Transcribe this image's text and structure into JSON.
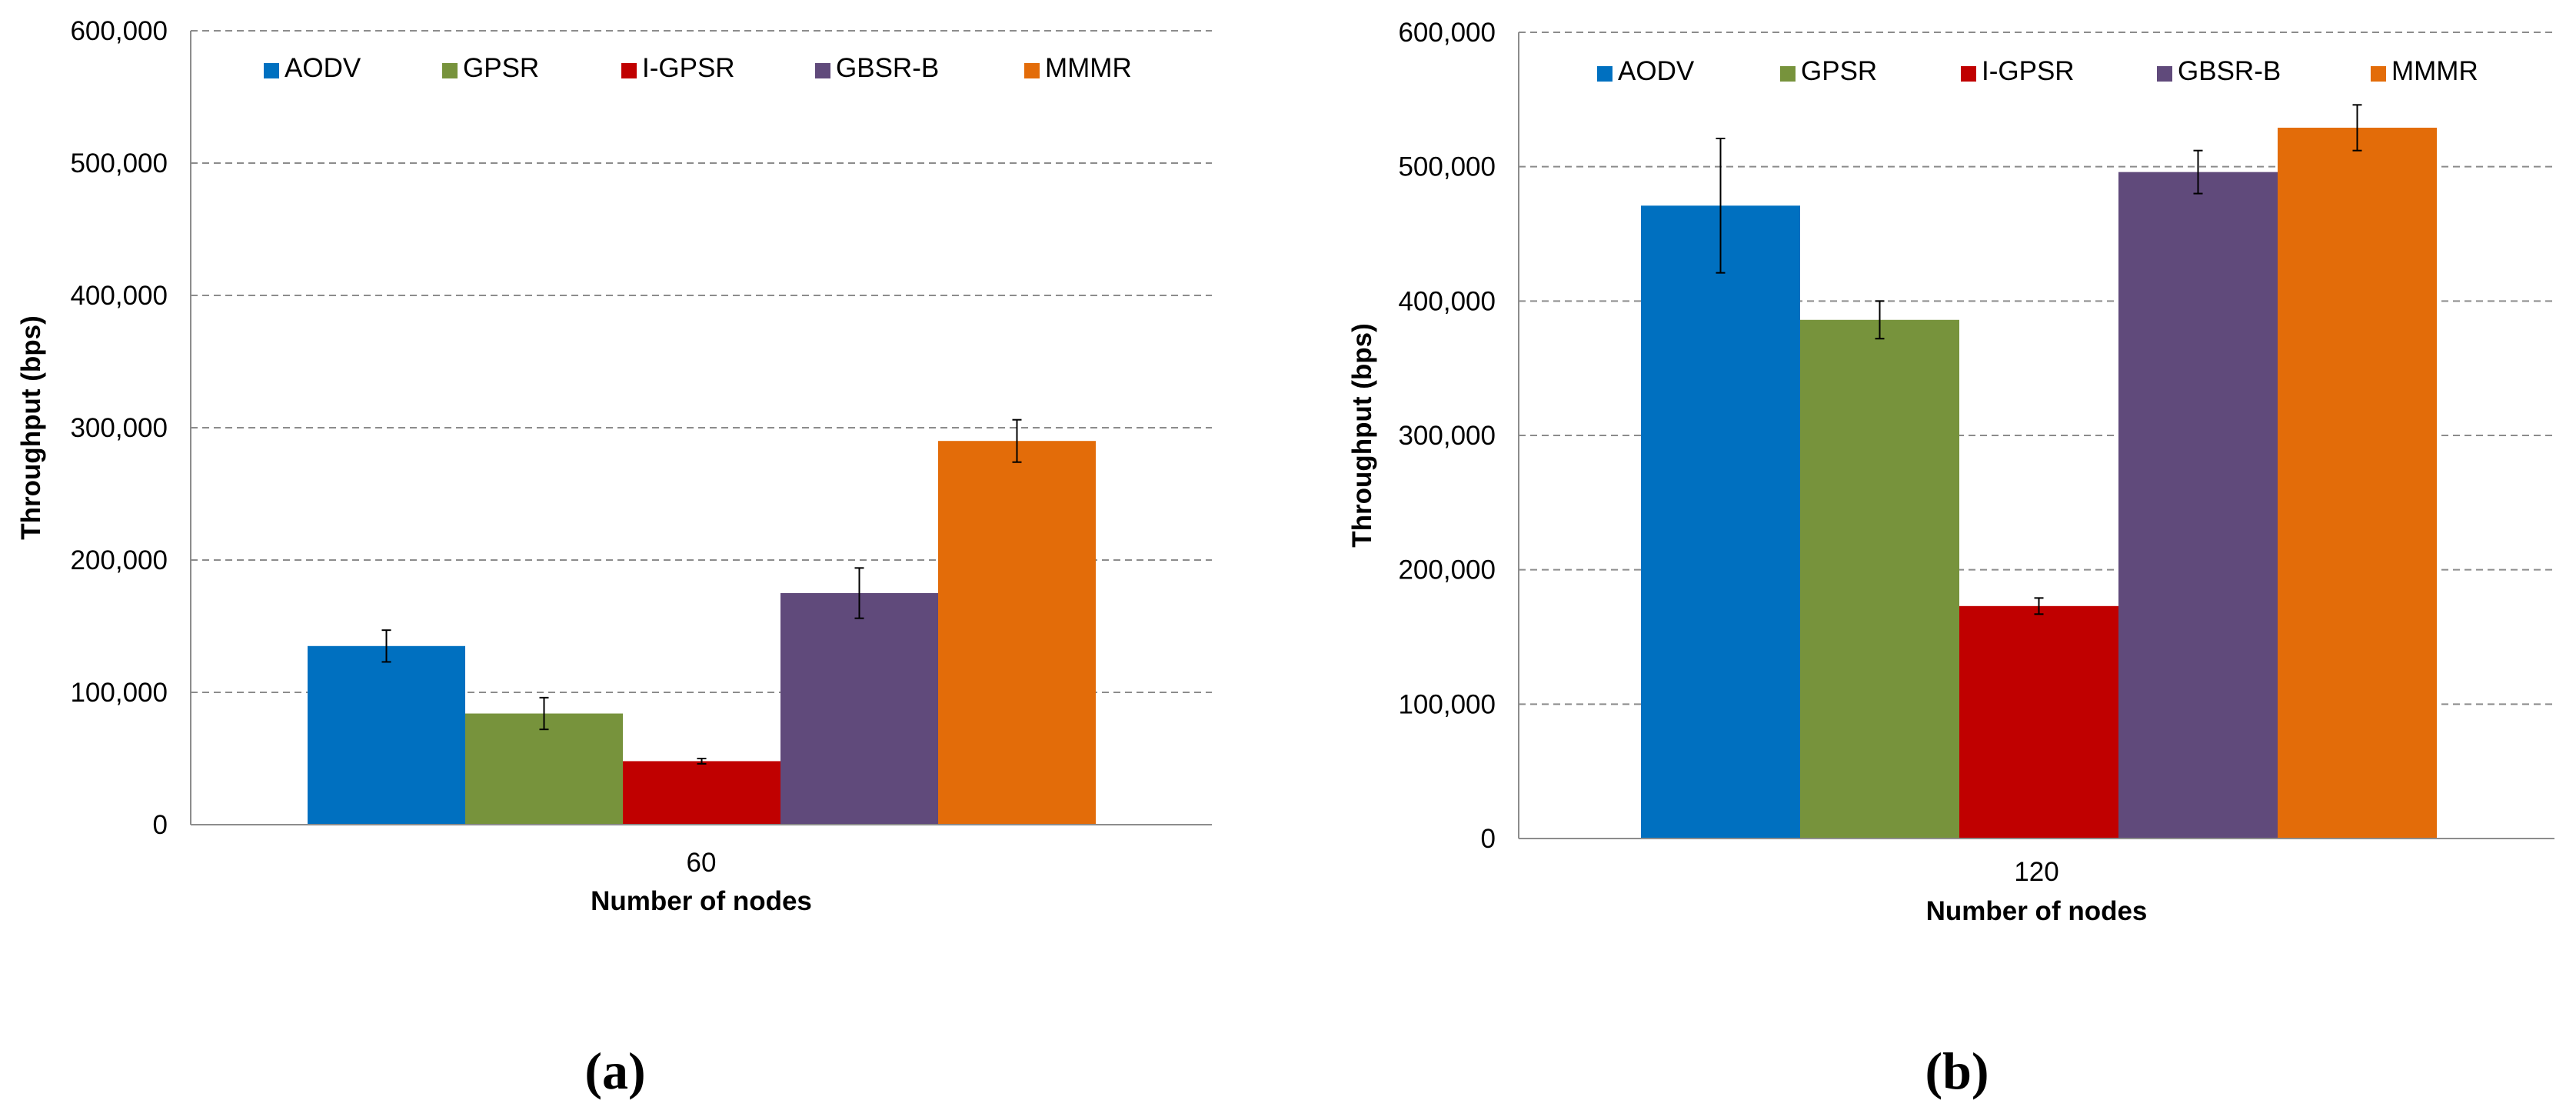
{
  "colors": {
    "AODV": "#0070C0",
    "GPSR": "#77933C",
    "I-GPSR": "#C00000",
    "GBSR-B": "#604A7B",
    "MMMR": "#E36C09"
  },
  "chart_data": [
    {
      "type": "bar",
      "panel_label": "(a)",
      "categories": [
        "60"
      ],
      "series": [
        {
          "name": "AODV",
          "values": [
            135000
          ],
          "error": [
            12000
          ]
        },
        {
          "name": "GPSR",
          "values": [
            84000
          ],
          "error": [
            12000
          ]
        },
        {
          "name": "I-GPSR",
          "values": [
            48000
          ],
          "error": [
            2000
          ]
        },
        {
          "name": "GBSR-B",
          "values": [
            175000
          ],
          "error": [
            19000
          ]
        },
        {
          "name": "MMMR",
          "values": [
            290000
          ],
          "error": [
            16000
          ]
        }
      ],
      "title": "",
      "xlabel": "Number of nodes",
      "ylabel": "Throughput (bps)",
      "ylim": [
        0,
        600000
      ],
      "yticks": [
        "0",
        "100,000",
        "200,000",
        "300,000",
        "400,000",
        "500,000",
        "600,000"
      ],
      "legend": [
        "AODV",
        "GPSR",
        "I-GPSR",
        "GBSR-B",
        "MMMR"
      ],
      "legend_position": "top",
      "grid": "horizontal dashed"
    },
    {
      "type": "bar",
      "panel_label": "(b)",
      "categories": [
        "120"
      ],
      "series": [
        {
          "name": "AODV",
          "values": [
            471000
          ],
          "error": [
            50000
          ]
        },
        {
          "name": "GPSR",
          "values": [
            386000
          ],
          "error": [
            14000
          ]
        },
        {
          "name": "I-GPSR",
          "values": [
            173000
          ],
          "error": [
            6000
          ]
        },
        {
          "name": "GBSR-B",
          "values": [
            496000
          ],
          "error": [
            16000
          ]
        },
        {
          "name": "MMMR",
          "values": [
            529000
          ],
          "error": [
            17000
          ]
        }
      ],
      "title": "",
      "xlabel": "Number of nodes",
      "ylabel": "Throughput (bps)",
      "ylim": [
        0,
        600000
      ],
      "yticks": [
        "0",
        "100,000",
        "200,000",
        "300,000",
        "400,000",
        "500,000",
        "600,000"
      ],
      "legend": [
        "AODV",
        "GPSR",
        "I-GPSR",
        "GBSR-B",
        "MMMR"
      ],
      "legend_position": "top",
      "grid": "horizontal dashed"
    }
  ]
}
